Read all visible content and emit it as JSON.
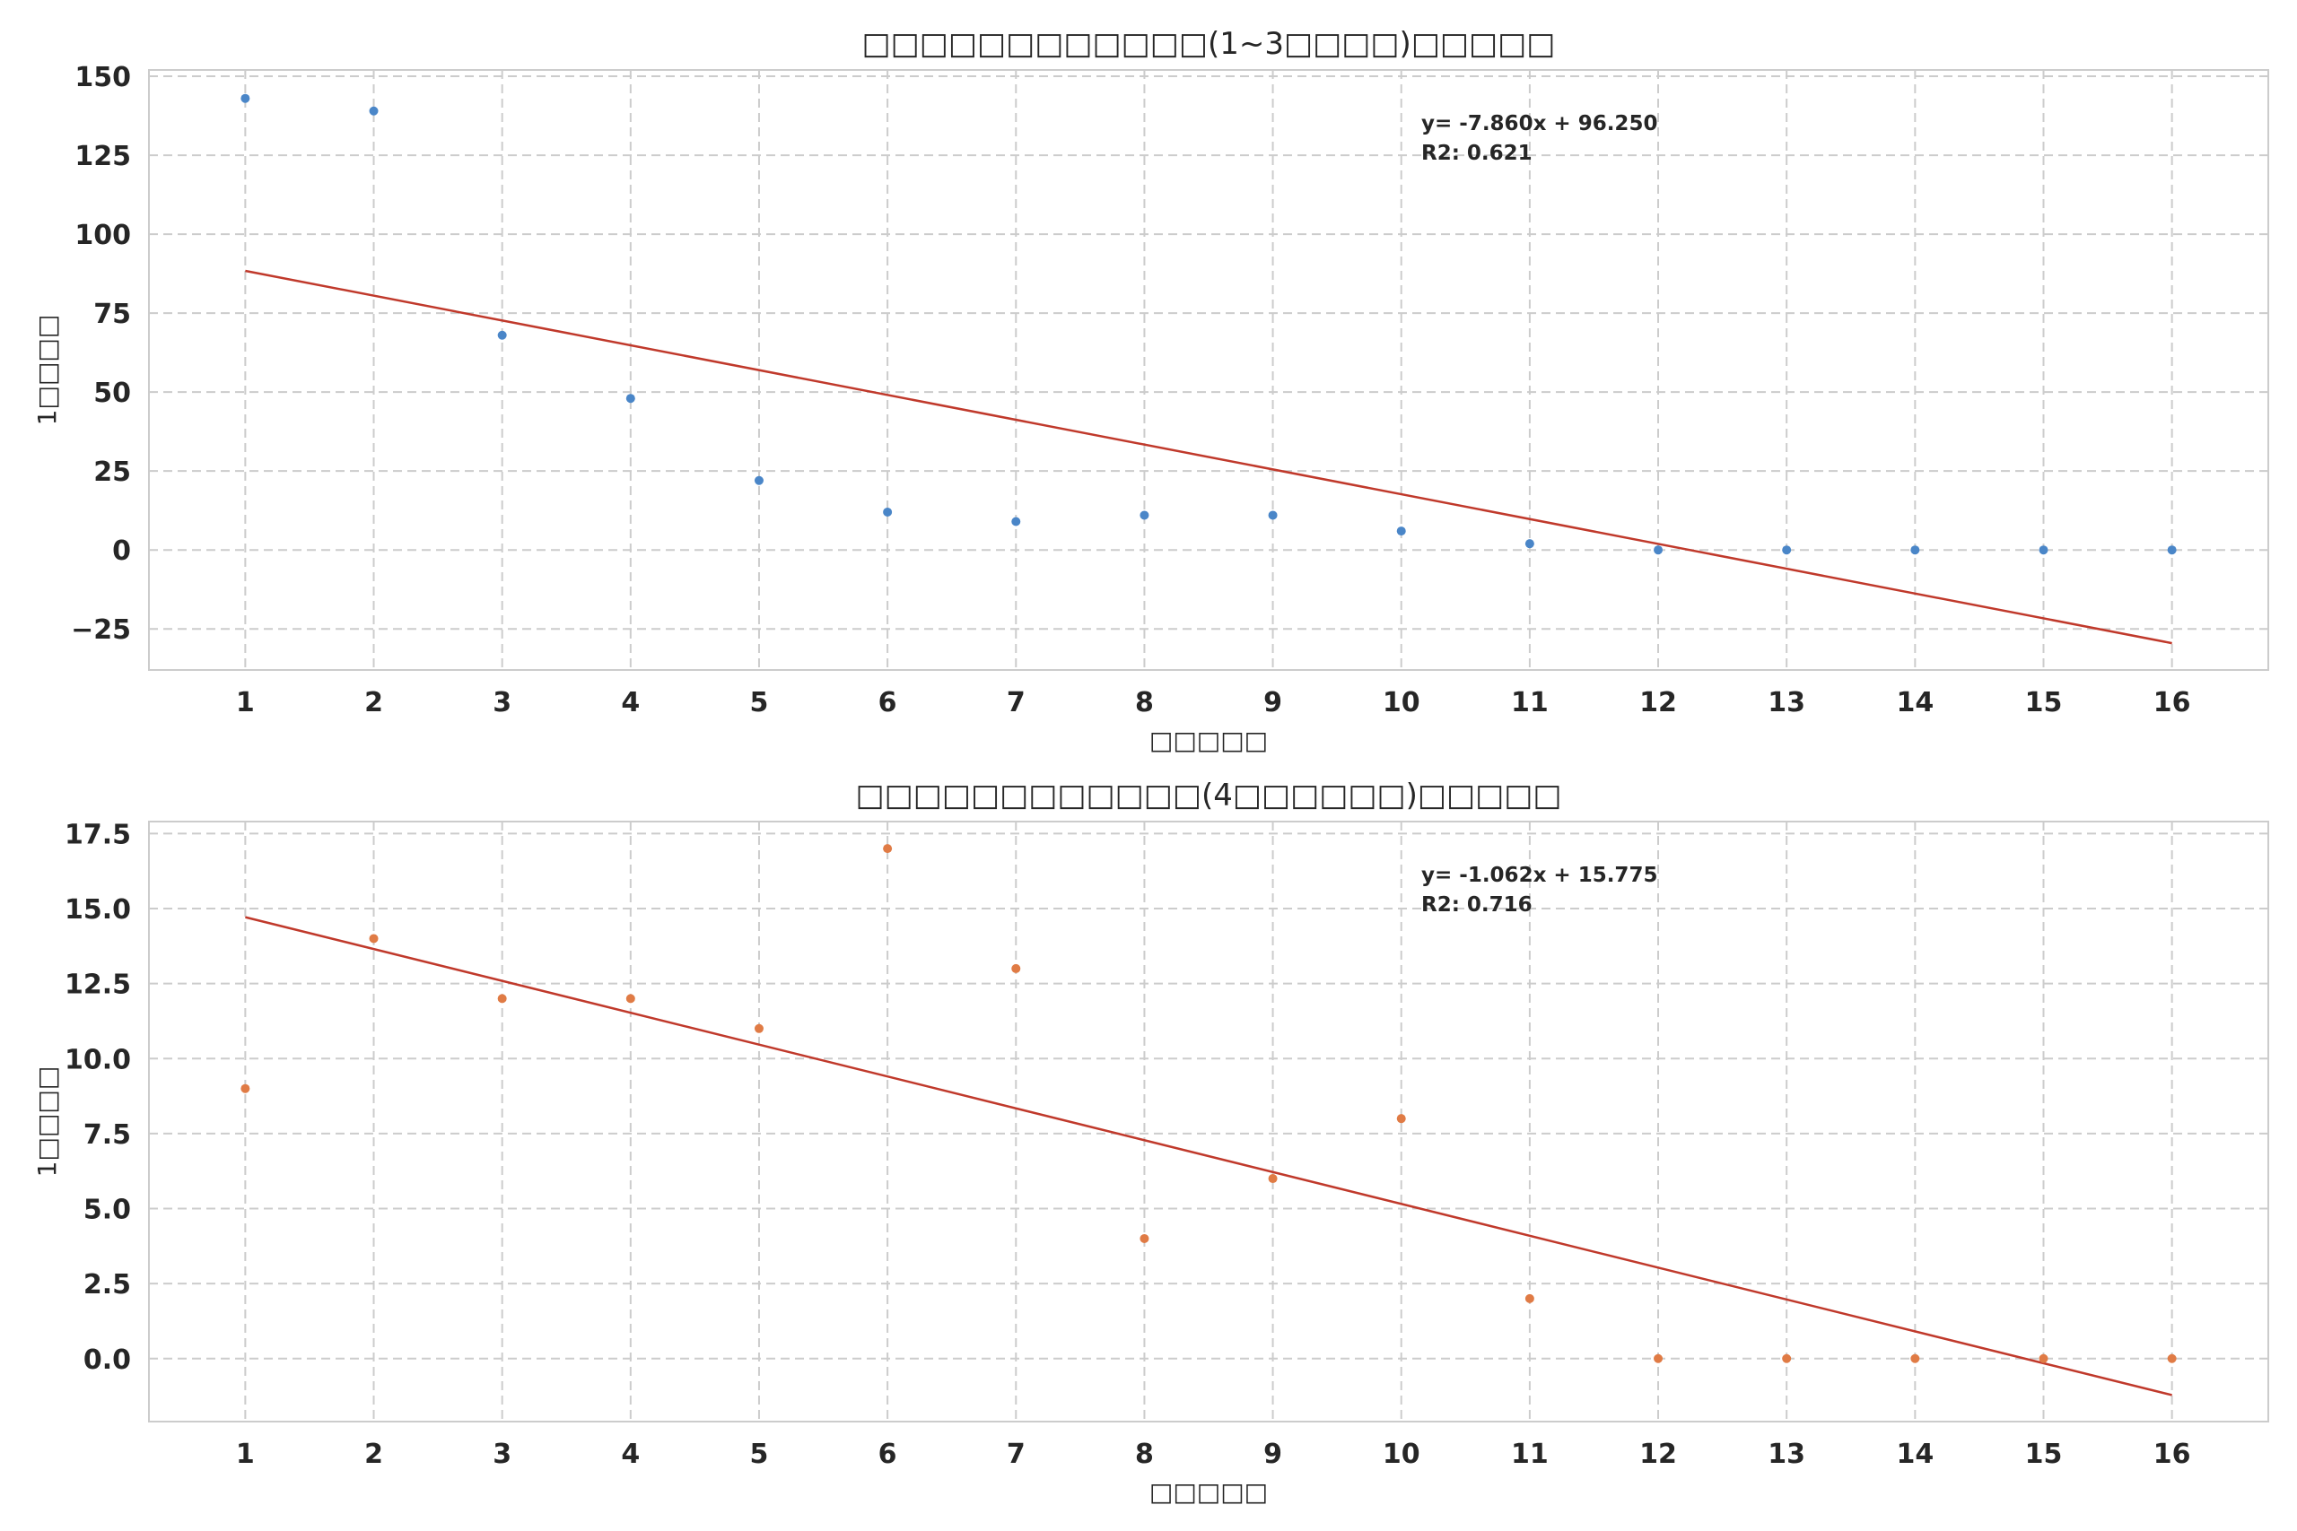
{
  "chart_data": [
    {
      "type": "scatter",
      "title": "□□□□□□□□□□□□(1~3□□□□)□□□□□",
      "xlabel": "□□□□□",
      "ylabel": "1□□□□",
      "x": [
        1,
        2,
        3,
        4,
        5,
        6,
        7,
        8,
        9,
        10,
        11,
        12,
        13,
        14,
        15,
        16
      ],
      "y": [
        143,
        139,
        68,
        48,
        22,
        12,
        9,
        11,
        11,
        6,
        2,
        0,
        0,
        0,
        0,
        0
      ],
      "xlim": [
        0.25,
        16.75
      ],
      "ylim": [
        -38,
        152
      ],
      "xticks": [
        "1",
        "2",
        "3",
        "4",
        "5",
        "6",
        "7",
        "8",
        "9",
        "10",
        "11",
        "12",
        "13",
        "14",
        "15",
        "16"
      ],
      "yticks": [
        -25,
        0,
        25,
        50,
        75,
        100,
        125,
        150
      ],
      "ytick_labels": [
        "−25",
        "0",
        "25",
        "50",
        "75",
        "100",
        "125",
        "150"
      ],
      "fit": {
        "slope": -7.86,
        "intercept": 96.25
      },
      "annotation": [
        "y= -7.860x + 96.250",
        "R2: 0.621"
      ],
      "grid": true,
      "colors": {
        "points": "#4a86c8",
        "fit": "#c0392b"
      }
    },
    {
      "type": "scatter",
      "title": "□□□□□□□□□□□□(4□□□□□□)□□□□□",
      "xlabel": "□□□□□",
      "ylabel": "1□□□□",
      "x": [
        1,
        2,
        3,
        4,
        5,
        6,
        7,
        8,
        9,
        10,
        11,
        12,
        13,
        14,
        15,
        16
      ],
      "y": [
        9,
        14,
        12,
        12,
        11,
        17,
        13,
        4,
        6,
        8,
        2,
        0,
        0,
        0,
        0,
        0
      ],
      "xlim": [
        0.25,
        16.75
      ],
      "ylim": [
        -2.1,
        17.9
      ],
      "xticks": [
        "1",
        "2",
        "3",
        "4",
        "5",
        "6",
        "7",
        "8",
        "9",
        "10",
        "11",
        "12",
        "13",
        "14",
        "15",
        "16"
      ],
      "yticks": [
        0,
        2.5,
        5,
        7.5,
        10,
        12.5,
        15,
        17.5
      ],
      "ytick_labels": [
        "0.0",
        "2.5",
        "5.0",
        "7.5",
        "10.0",
        "12.5",
        "15.0",
        "17.5"
      ],
      "fit": {
        "slope": -1.062,
        "intercept": 15.775
      },
      "annotation": [
        "y= -1.062x + 15.775",
        "R2: 0.716"
      ],
      "grid": true,
      "colors": {
        "points": "#e07b45",
        "fit": "#c0392b"
      }
    }
  ]
}
